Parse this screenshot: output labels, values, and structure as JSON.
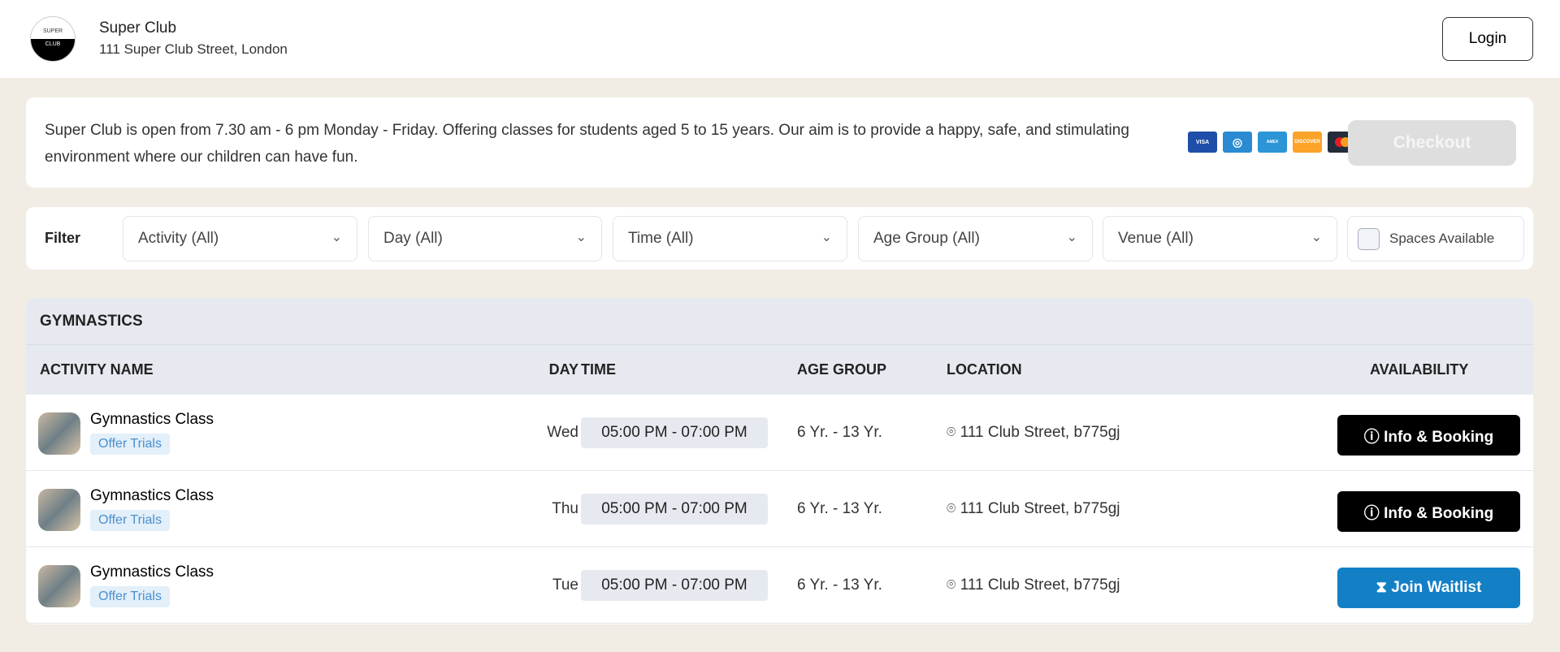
{
  "header": {
    "logo_text": [
      "SUPER",
      "CLUB"
    ],
    "club_name": "Super Club",
    "address": "111 Super Club Street, London",
    "login_label": "Login"
  },
  "info": {
    "description": "Super Club is open from 7.30 am - 6 pm Monday - Friday. Offering classes for students aged 5 to 15 years. Our aim is to provide a happy, safe, and stimulating environment where our children can have fun.",
    "payment_icons": [
      "visa",
      "diners",
      "amex",
      "discover",
      "mastercard"
    ],
    "checkout_label": "Checkout"
  },
  "filter": {
    "label": "Filter",
    "selects": [
      "Activity (All)",
      "Day (All)",
      "Time (All)",
      "Age Group (All)",
      "Venue (All)"
    ],
    "spaces_label": "Spaces Available",
    "spaces_checked": false
  },
  "table": {
    "section": "GYMNASTICS",
    "columns": {
      "name": "ACTIVITY NAME",
      "day": "DAY",
      "time": "TIME",
      "age": "AGE GROUP",
      "location": "LOCATION",
      "availability": "AVAILABILITY"
    },
    "rows": [
      {
        "name": "Gymnastics Class",
        "badge": "Offer Trials",
        "day": "Wed",
        "time": "05:00 PM - 07:00 PM",
        "age": "6 Yr. - 13 Yr.",
        "location": "111 Club Street, b775gj",
        "action": "Info & Booking",
        "action_icon": "info-icon"
      },
      {
        "name": "Gymnastics Class",
        "badge": "Offer Trials",
        "day": "Thu",
        "time": "05:00 PM - 07:00 PM",
        "age": "6 Yr. - 13 Yr.",
        "location": "111 Club Street, b775gj",
        "action": "Info & Booking",
        "action_icon": "info-icon"
      },
      {
        "name": "Gymnastics Class",
        "badge": "Offer Trials",
        "day": "Tue",
        "time": "05:00 PM - 07:00 PM",
        "age": "6 Yr. - 13 Yr.",
        "location": "111 Club Street, b775gj",
        "action": "Join Waitlist",
        "action_icon": "hourglass-icon"
      }
    ]
  },
  "colors": {
    "background": "#f1ede5",
    "waitlist": "#1380c6",
    "booking": "#000000",
    "badge_text": "#4a8fcf"
  }
}
